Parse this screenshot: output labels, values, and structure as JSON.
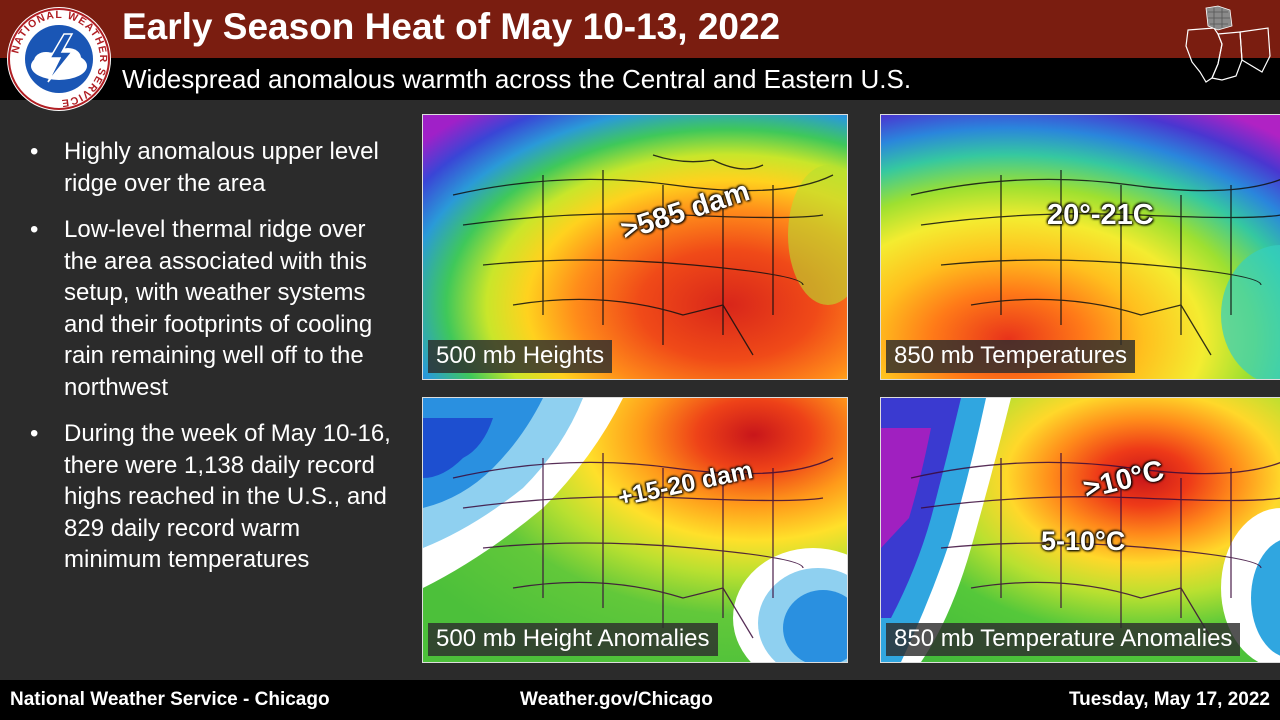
{
  "header": {
    "title": "Early Season Heat of May 10-13, 2022",
    "subtitle": "Widespread anomalous warmth across the Central and Eastern U.S."
  },
  "logo": {
    "ring_text": "NATIONAL WEATHER SERVICE",
    "icon": "nws-logo-icon"
  },
  "state_map": {
    "icon": "illinois-indiana-map-icon"
  },
  "bullets": [
    "Highly anomalous upper level ridge over the area",
    "Low-level thermal ridge over the area associated with this setup, with weather systems and their footprints of cooling rain remaining well off to the northwest",
    "During the week of May 10-16, there were 1,138 daily record highs reached in the U.S., and 829 daily record warm minimum temperatures"
  ],
  "bullet_symbol": "•",
  "panels": [
    {
      "label": "500 mb Heights",
      "annotation": ">585 dam"
    },
    {
      "label": "850 mb Temperatures",
      "annotation": "20°-21C"
    },
    {
      "label": "500 mb Height Anomalies",
      "annotation": "+15-20 dam"
    },
    {
      "label": "850 mb Temperature Anomalies",
      "annotation": ">10°C",
      "annotation2": "5-10°C"
    }
  ],
  "footer": {
    "left": "National Weather Service - Chicago",
    "center": "Weather.gov/Chicago",
    "right": "Tuesday, May 17, 2022"
  },
  "colors": {
    "title_bar": "#7a1d10",
    "background": "#2b2b2b",
    "subtitle_bar": "#000000"
  }
}
